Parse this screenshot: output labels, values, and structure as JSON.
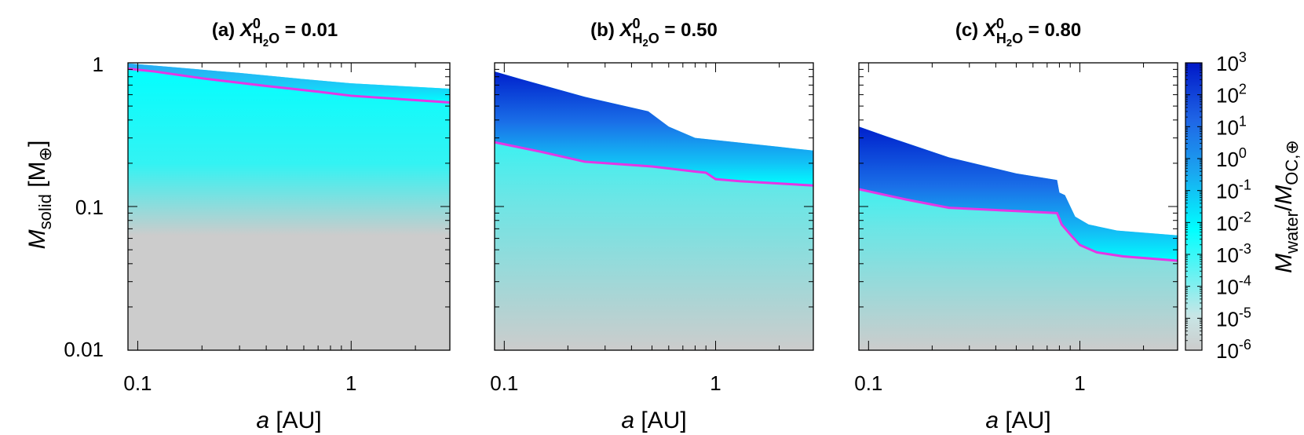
{
  "chart_data": [
    {
      "type": "heatmap",
      "panel": "a",
      "title_prefix": "(a) ",
      "title_var": "X",
      "title_sup": "0",
      "title_sub": "H",
      "title_sub2": "2",
      "title_sub3": "O",
      "title_value": " = 0.01",
      "xlabel_italic": "a",
      "xlabel_rest": " [AU]",
      "xscale": "log",
      "yscale": "log",
      "xlim": [
        0.09,
        2.9
      ],
      "ylim": [
        0.01,
        1
      ],
      "xticks": [
        "0.1",
        "1"
      ],
      "upper_boundary": [
        [
          0.09,
          0.99
        ],
        [
          0.15,
          0.93
        ],
        [
          0.3,
          0.85
        ],
        [
          0.6,
          0.77
        ],
        [
          1.0,
          0.72
        ],
        [
          2.0,
          0.68
        ],
        [
          2.9,
          0.66
        ]
      ],
      "contour_magenta": [
        [
          0.09,
          0.91
        ],
        [
          0.12,
          0.87
        ],
        [
          0.2,
          0.78
        ],
        [
          0.4,
          0.69
        ],
        [
          0.7,
          0.63
        ],
        [
          1.0,
          0.59
        ],
        [
          2.0,
          0.55
        ],
        [
          2.9,
          0.53
        ]
      ],
      "contour_color": "#e535e5"
    },
    {
      "type": "heatmap",
      "panel": "b",
      "title_prefix": "(b) ",
      "title_var": "X",
      "title_sup": "0",
      "title_sub": "H",
      "title_sub2": "2",
      "title_sub3": "O",
      "title_value": " = 0.50",
      "xlabel_italic": "a",
      "xlabel_rest": " [AU]",
      "xscale": "log",
      "yscale": "log",
      "xlim": [
        0.09,
        2.9
      ],
      "ylim": [
        0.01,
        1
      ],
      "xticks": [
        "0.1",
        "1"
      ],
      "upper_boundary": [
        [
          0.09,
          0.87
        ],
        [
          0.12,
          0.77
        ],
        [
          0.24,
          0.58
        ],
        [
          0.48,
          0.46
        ],
        [
          0.6,
          0.36
        ],
        [
          0.8,
          0.3
        ],
        [
          1.0,
          0.29
        ],
        [
          2.0,
          0.26
        ],
        [
          2.9,
          0.245
        ]
      ],
      "contour_magenta": [
        [
          0.09,
          0.28
        ],
        [
          0.15,
          0.24
        ],
        [
          0.24,
          0.205
        ],
        [
          0.5,
          0.19
        ],
        [
          0.8,
          0.175
        ],
        [
          0.9,
          0.172
        ],
        [
          1.0,
          0.155
        ],
        [
          1.3,
          0.15
        ],
        [
          2.9,
          0.14
        ]
      ],
      "contour_color": "#e535e5"
    },
    {
      "type": "heatmap",
      "panel": "c",
      "title_prefix": "(c) ",
      "title_var": "X",
      "title_sup": "0",
      "title_sub": "H",
      "title_sub2": "2",
      "title_sub3": "O",
      "title_value": " = 0.80",
      "xlabel_italic": "a",
      "xlabel_rest": " [AU]",
      "xscale": "log",
      "yscale": "log",
      "xlim": [
        0.09,
        2.9
      ],
      "ylim": [
        0.01,
        1
      ],
      "xticks": [
        "0.1",
        "1"
      ],
      "upper_boundary": [
        [
          0.09,
          0.36
        ],
        [
          0.12,
          0.31
        ],
        [
          0.24,
          0.22
        ],
        [
          0.5,
          0.17
        ],
        [
          0.78,
          0.153
        ],
        [
          0.8,
          0.125
        ],
        [
          0.85,
          0.12
        ],
        [
          0.95,
          0.085
        ],
        [
          1.1,
          0.075
        ],
        [
          1.5,
          0.068
        ],
        [
          2.9,
          0.063
        ]
      ],
      "contour_magenta": [
        [
          0.09,
          0.132
        ],
        [
          0.15,
          0.112
        ],
        [
          0.24,
          0.098
        ],
        [
          0.5,
          0.093
        ],
        [
          0.78,
          0.09
        ],
        [
          0.82,
          0.075
        ],
        [
          0.9,
          0.064
        ],
        [
          1.0,
          0.054
        ],
        [
          1.2,
          0.048
        ],
        [
          1.6,
          0.045
        ],
        [
          2.9,
          0.042
        ]
      ],
      "contour_color": "#e535e5"
    }
  ],
  "y_axis": {
    "label_italic": "M",
    "label_sub": "solid",
    "label_rest": " [M",
    "label_sub2": "⊕",
    "label_close": "]",
    "ticks": [
      "1",
      "0.1",
      "0.01"
    ]
  },
  "colorbar": {
    "label_italic1": "M",
    "label_sub1": "water",
    "label_slash": "/",
    "label_italic2": "M",
    "label_sub2": "OC,⊕",
    "scale": "log",
    "range": [
      1e-06,
      1000.0
    ],
    "ticks": [
      {
        "base": "10",
        "exp": "3"
      },
      {
        "base": "10",
        "exp": "2"
      },
      {
        "base": "10",
        "exp": "1"
      },
      {
        "base": "10",
        "exp": "0"
      },
      {
        "base": "10",
        "exp": "-1"
      },
      {
        "base": "10",
        "exp": "-2"
      },
      {
        "base": "10",
        "exp": "-3"
      },
      {
        "base": "10",
        "exp": "-4"
      },
      {
        "base": "10",
        "exp": "-5"
      },
      {
        "base": "10",
        "exp": "-6"
      }
    ],
    "colors": [
      "#cccccc",
      "#00ffff",
      "#1580ee",
      "#0000c8"
    ]
  }
}
